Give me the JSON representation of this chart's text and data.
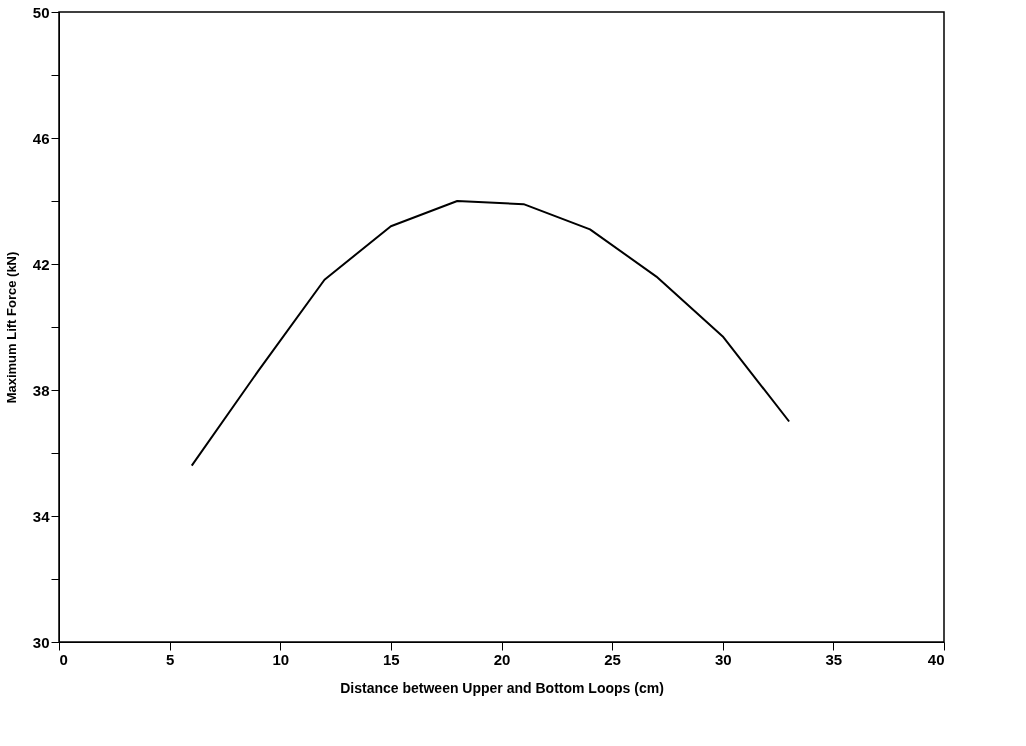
{
  "chart_data": {
    "type": "line",
    "xlabel": "Distance between Upper and Bottom Loops (cm)",
    "ylabel": "Maximum Lift Force (kN)",
    "x": [
      6,
      9,
      12,
      15,
      18,
      21,
      24,
      27,
      30,
      33
    ],
    "series": [
      {
        "color": "#000000",
        "values": [
          35.6,
          38.6,
          41.5,
          43.2,
          44.0,
          43.9,
          43.1,
          41.6,
          39.7,
          37.0
        ]
      }
    ],
    "xlim": [
      0,
      40
    ],
    "xticks": [
      0,
      5,
      10,
      15,
      20,
      25,
      30,
      35,
      40
    ],
    "ylim": [
      30,
      50
    ],
    "yticks": [
      30,
      {
        "value": 32,
        "label": null
      },
      34,
      {
        "value": 36,
        "label": null
      },
      38,
      {
        "value": 40,
        "label": null
      },
      42,
      {
        "value": 44,
        "label": null
      },
      46,
      {
        "value": 48,
        "label": null
      },
      50
    ],
    "grid": false,
    "marker": "none",
    "line_style": "solid"
  }
}
